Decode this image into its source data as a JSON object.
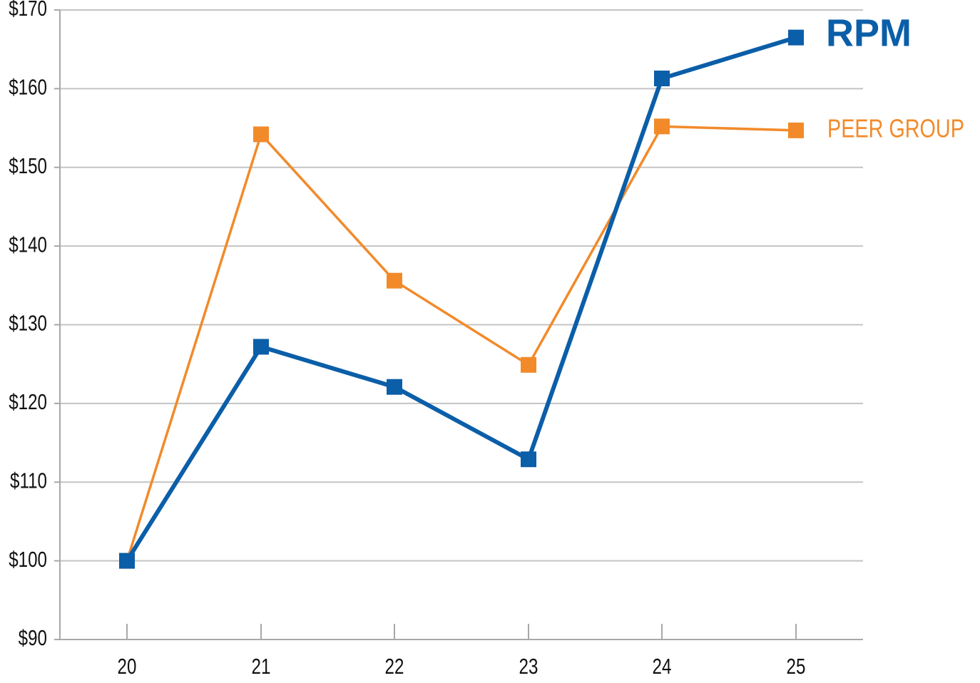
{
  "chart_data": {
    "type": "line",
    "title": "",
    "xlabel": "",
    "ylabel": "",
    "categories": [
      "20",
      "21",
      "22",
      "23",
      "24",
      "25"
    ],
    "ylim": [
      90,
      170
    ],
    "yticks": [
      90,
      100,
      110,
      120,
      130,
      140,
      150,
      160,
      170
    ],
    "ytick_labels": [
      "$90",
      "$100",
      "$110",
      "$120",
      "$130",
      "$140",
      "$150",
      "$160",
      "$170"
    ],
    "grid": true,
    "legend_placement": "right, at series end",
    "series": [
      {
        "name": "RPM",
        "color": "#0b5ea8",
        "values": [
          100,
          127.2,
          122.1,
          112.9,
          161.3,
          166.5
        ]
      },
      {
        "name": "PEER GROUP",
        "color": "#f28a2a",
        "values": [
          100,
          154.2,
          135.6,
          124.9,
          155.2,
          154.7
        ]
      }
    ]
  }
}
